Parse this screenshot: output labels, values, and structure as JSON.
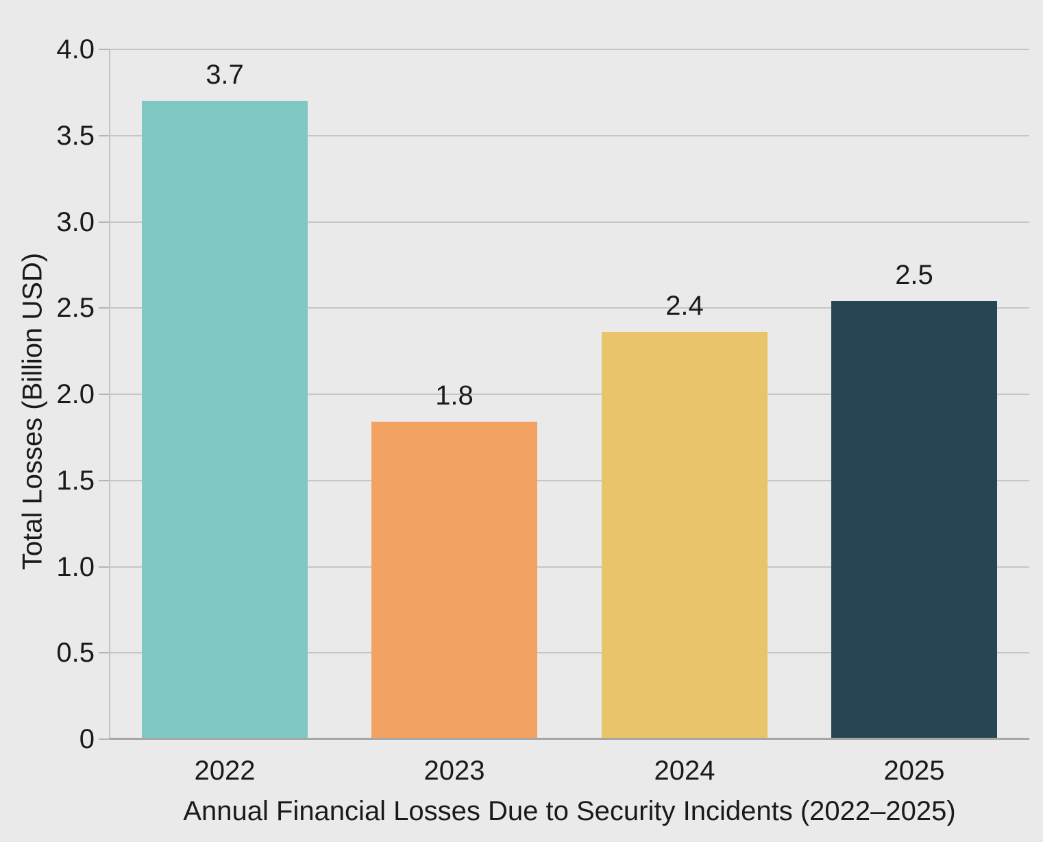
{
  "chart": {
    "background_color": "#EAEAEA",
    "grid_color": "#C6C6C6",
    "axis_spine_color": "#A6A6A6",
    "text_color": "#1A1A1A"
  },
  "chart_data": {
    "type": "bar",
    "title": "",
    "xlabel": "Annual Financial Losses Due to Security Incidents (2022–2025)",
    "ylabel": "Total Losses (Billion USD)",
    "categories": [
      "2022",
      "2023",
      "2024",
      "2025"
    ],
    "values": [
      3.7,
      1.8,
      2.4,
      2.5
    ],
    "bar_value_labels": [
      "3.7",
      "1.8",
      "2.4",
      "2.5"
    ],
    "values_render": [
      3.7,
      1.84,
      2.36,
      2.54
    ],
    "bar_colors": [
      "#7FC9C2",
      "#F4A261",
      "#E9C46A",
      "#264653"
    ],
    "ylim": [
      0,
      4.0
    ],
    "yticks": [
      0,
      0.5,
      1.0,
      1.5,
      2.0,
      2.5,
      3.0,
      3.5,
      4.0
    ],
    "ytick_labels": [
      "0",
      "0.5",
      "1.0",
      "1.5",
      "2.0",
      "2.5",
      "3.0",
      "3.5",
      "4.0"
    ],
    "grid": "horizontal",
    "legend": "none"
  }
}
